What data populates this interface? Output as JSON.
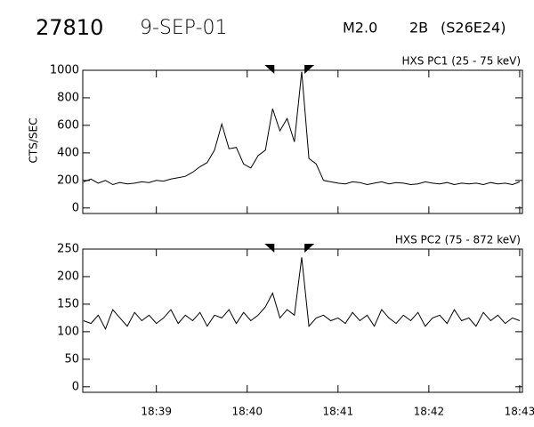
{
  "header": {
    "id": "27810",
    "date": "9-SEP-01",
    "class": "M2.0",
    "optical": "2B",
    "location": "(S26E24)"
  },
  "chart_data": [
    {
      "type": "line",
      "title": "HXS PC1 (25 - 75 keV)",
      "y_label": "CTS/SEC",
      "x": [
        38.2,
        38.28,
        38.36,
        38.44,
        38.52,
        38.6,
        38.68,
        38.76,
        38.84,
        38.92,
        39,
        39.08,
        39.16,
        39.24,
        39.32,
        39.4,
        39.48,
        39.56,
        39.64,
        39.72,
        39.8,
        39.88,
        39.96,
        40.04,
        40.12,
        40.2,
        40.28,
        40.36,
        40.44,
        40.52,
        40.6,
        40.68,
        40.76,
        40.84,
        40.92,
        41,
        41.08,
        41.16,
        41.24,
        41.32,
        41.4,
        41.48,
        41.56,
        41.64,
        41.72,
        41.8,
        41.88,
        41.96,
        42.04,
        42.12,
        42.2,
        42.28,
        42.36,
        42.44,
        42.52,
        42.6,
        42.68,
        42.76,
        42.84,
        42.92,
        43
      ],
      "values": [
        190,
        210,
        180,
        200,
        170,
        185,
        175,
        180,
        190,
        185,
        200,
        195,
        210,
        220,
        230,
        260,
        300,
        330,
        420,
        610,
        430,
        440,
        320,
        290,
        380,
        420,
        720,
        560,
        650,
        480,
        990,
        360,
        320,
        200,
        190,
        180,
        175,
        190,
        185,
        170,
        180,
        190,
        175,
        185,
        180,
        170,
        175,
        190,
        180,
        175,
        185,
        170,
        180,
        175,
        180,
        170,
        185,
        175,
        180,
        170,
        190
      ],
      "color": "#000000",
      "markers": [
        40.26,
        40.67
      ],
      "xlim": [
        38.19,
        43.03
      ],
      "xticks": [
        39,
        40,
        41,
        42,
        43
      ],
      "ylim": [
        -40,
        1000
      ],
      "yticks": [
        0,
        200,
        400,
        600,
        800,
        1000
      ]
    },
    {
      "type": "line",
      "title": "HXS PC2 (75 - 872 keV)",
      "x": [
        38.2,
        38.28,
        38.36,
        38.44,
        38.52,
        38.6,
        38.68,
        38.76,
        38.84,
        38.92,
        39,
        39.08,
        39.16,
        39.24,
        39.32,
        39.4,
        39.48,
        39.56,
        39.64,
        39.72,
        39.8,
        39.88,
        39.96,
        40.04,
        40.12,
        40.2,
        40.28,
        40.36,
        40.44,
        40.52,
        40.6,
        40.68,
        40.76,
        40.84,
        40.92,
        41,
        41.08,
        41.16,
        41.24,
        41.32,
        41.4,
        41.48,
        41.56,
        41.64,
        41.72,
        41.8,
        41.88,
        41.96,
        42.04,
        42.12,
        42.2,
        42.28,
        42.36,
        42.44,
        42.52,
        42.6,
        42.68,
        42.76,
        42.84,
        42.92,
        43
      ],
      "values": [
        120,
        115,
        130,
        105,
        140,
        125,
        110,
        135,
        120,
        130,
        115,
        125,
        140,
        115,
        130,
        120,
        135,
        110,
        130,
        125,
        140,
        115,
        135,
        120,
        130,
        145,
        170,
        125,
        140,
        130,
        235,
        110,
        125,
        130,
        120,
        125,
        115,
        135,
        120,
        130,
        110,
        140,
        125,
        115,
        130,
        120,
        135,
        110,
        125,
        130,
        115,
        140,
        120,
        125,
        110,
        135,
        120,
        130,
        115,
        125,
        120
      ],
      "color": "#000000",
      "markers": [
        40.26,
        40.67
      ],
      "xlim": [
        38.19,
        43.03
      ],
      "xticks": [
        {
          "value": 39,
          "label": "18:39"
        },
        {
          "value": 40,
          "label": "18:40"
        },
        {
          "value": 41,
          "label": "18:41"
        },
        {
          "value": 42,
          "label": "18:42"
        },
        {
          "value": 43,
          "label": "18:43"
        }
      ],
      "ylim": [
        -10,
        250
      ],
      "yticks": [
        0,
        50,
        100,
        150,
        200,
        250
      ]
    }
  ]
}
